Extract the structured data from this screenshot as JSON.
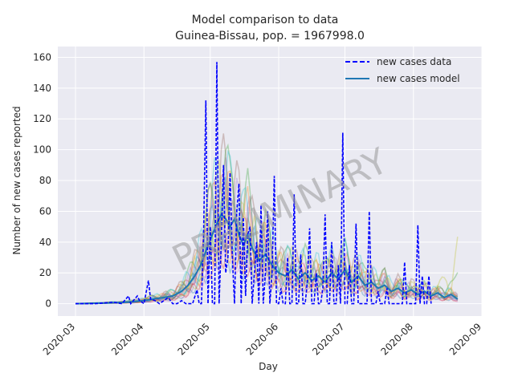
{
  "chart_data": {
    "type": "line",
    "title": "Model comparison to data",
    "subtitle": "Guinea-Bissau, pop. = 1967998.0",
    "xlabel": "Day",
    "ylabel": "Number of new cases reported",
    "watermark": "PRELIMINARY",
    "x_axis": {
      "kind": "date",
      "range": [
        "2020-02-22",
        "2020-09-01"
      ],
      "ticks": [
        "2020-03",
        "2020-04",
        "2020-05",
        "2020-06",
        "2020-07",
        "2020-08",
        "2020-09"
      ]
    },
    "y_axis": {
      "range": [
        -8,
        167
      ],
      "ticks": [
        0,
        20,
        40,
        60,
        80,
        100,
        120,
        140,
        160
      ]
    },
    "grid": true,
    "legend": {
      "placement": "top-right",
      "entries": [
        {
          "label": "new cases data",
          "style": "dashed",
          "color": "#0000ff"
        },
        {
          "label": "new cases model",
          "style": "solid",
          "color": "#1f77b4"
        }
      ]
    },
    "colors": {
      "background": "#eaeaf2",
      "grid": "#ffffff",
      "data": "#0000ff",
      "model": "#1f77b4",
      "ensemble": [
        "#1f77b4",
        "#ff7f0e",
        "#2ca02c",
        "#d62728",
        "#9467bd",
        "#8c564b",
        "#e377c2",
        "#bcbd22",
        "#17becf"
      ]
    },
    "series": [
      {
        "name": "new cases data",
        "points": [
          [
            "2020-03-01",
            0
          ],
          [
            "2020-03-10",
            0
          ],
          [
            "2020-03-18",
            1
          ],
          [
            "2020-03-22",
            0
          ],
          [
            "2020-03-25",
            5
          ],
          [
            "2020-03-26",
            0
          ],
          [
            "2020-03-29",
            5
          ],
          [
            "2020-03-30",
            2
          ],
          [
            "2020-04-01",
            0
          ],
          [
            "2020-04-03",
            15
          ],
          [
            "2020-04-04",
            3
          ],
          [
            "2020-04-06",
            2
          ],
          [
            "2020-04-08",
            0
          ],
          [
            "2020-04-12",
            4
          ],
          [
            "2020-04-14",
            0
          ],
          [
            "2020-04-16",
            0
          ],
          [
            "2020-04-18",
            2
          ],
          [
            "2020-04-20",
            0
          ],
          [
            "2020-04-23",
            0
          ],
          [
            "2020-04-25",
            9
          ],
          [
            "2020-04-26",
            0
          ],
          [
            "2020-04-27",
            0
          ],
          [
            "2020-04-28",
            45
          ],
          [
            "2020-04-29",
            132
          ],
          [
            "2020-04-30",
            0
          ],
          [
            "2020-05-01",
            50
          ],
          [
            "2020-05-02",
            0
          ],
          [
            "2020-05-03",
            0
          ],
          [
            "2020-05-04",
            157
          ],
          [
            "2020-05-05",
            0
          ],
          [
            "2020-05-06",
            40
          ],
          [
            "2020-05-07",
            90
          ],
          [
            "2020-05-08",
            20
          ],
          [
            "2020-05-09",
            30
          ],
          [
            "2020-05-10",
            85
          ],
          [
            "2020-05-11",
            30
          ],
          [
            "2020-05-12",
            0
          ],
          [
            "2020-05-13",
            60
          ],
          [
            "2020-05-14",
            78
          ],
          [
            "2020-05-15",
            0
          ],
          [
            "2020-05-16",
            56
          ],
          [
            "2020-05-17",
            5
          ],
          [
            "2020-05-18",
            45
          ],
          [
            "2020-05-19",
            50
          ],
          [
            "2020-05-20",
            0
          ],
          [
            "2020-05-21",
            20
          ],
          [
            "2020-05-22",
            40
          ],
          [
            "2020-05-23",
            0
          ],
          [
            "2020-05-24",
            64
          ],
          [
            "2020-05-25",
            0
          ],
          [
            "2020-05-26",
            20
          ],
          [
            "2020-05-27",
            60
          ],
          [
            "2020-05-28",
            0
          ],
          [
            "2020-05-29",
            20
          ],
          [
            "2020-05-30",
            83
          ],
          [
            "2020-05-31",
            0
          ],
          [
            "2020-06-01",
            0
          ],
          [
            "2020-06-02",
            10
          ],
          [
            "2020-06-03",
            0
          ],
          [
            "2020-06-04",
            0
          ],
          [
            "2020-06-05",
            30
          ],
          [
            "2020-06-06",
            0
          ],
          [
            "2020-06-07",
            0
          ],
          [
            "2020-06-08",
            71
          ],
          [
            "2020-06-09",
            0
          ],
          [
            "2020-06-10",
            0
          ],
          [
            "2020-06-11",
            32
          ],
          [
            "2020-06-12",
            0
          ],
          [
            "2020-06-13",
            0
          ],
          [
            "2020-06-14",
            15
          ],
          [
            "2020-06-15",
            49
          ],
          [
            "2020-06-16",
            0
          ],
          [
            "2020-06-17",
            0
          ],
          [
            "2020-06-18",
            20
          ],
          [
            "2020-06-19",
            0
          ],
          [
            "2020-06-20",
            0
          ],
          [
            "2020-06-21",
            10
          ],
          [
            "2020-06-22",
            58
          ],
          [
            "2020-06-23",
            0
          ],
          [
            "2020-06-24",
            0
          ],
          [
            "2020-06-25",
            40
          ],
          [
            "2020-06-26",
            0
          ],
          [
            "2020-06-27",
            0
          ],
          [
            "2020-06-28",
            25
          ],
          [
            "2020-06-29",
            0
          ],
          [
            "2020-06-30",
            111
          ],
          [
            "2020-07-01",
            0
          ],
          [
            "2020-07-02",
            0
          ],
          [
            "2020-07-03",
            25
          ],
          [
            "2020-07-04",
            0
          ],
          [
            "2020-07-05",
            0
          ],
          [
            "2020-07-06",
            52
          ],
          [
            "2020-07-07",
            0
          ],
          [
            "2020-07-08",
            0
          ],
          [
            "2020-07-09",
            0
          ],
          [
            "2020-07-10",
            0
          ],
          [
            "2020-07-11",
            0
          ],
          [
            "2020-07-12",
            60
          ],
          [
            "2020-07-13",
            0
          ],
          [
            "2020-07-14",
            0
          ],
          [
            "2020-07-15",
            0
          ],
          [
            "2020-07-16",
            8
          ],
          [
            "2020-07-17",
            0
          ],
          [
            "2020-07-19",
            0
          ],
          [
            "2020-07-20",
            10
          ],
          [
            "2020-07-21",
            0
          ],
          [
            "2020-07-27",
            0
          ],
          [
            "2020-07-28",
            27
          ],
          [
            "2020-07-29",
            0
          ],
          [
            "2020-08-02",
            0
          ],
          [
            "2020-08-03",
            51
          ],
          [
            "2020-08-04",
            0
          ],
          [
            "2020-08-05",
            18
          ],
          [
            "2020-08-06",
            0
          ],
          [
            "2020-08-07",
            0
          ],
          [
            "2020-08-08",
            18
          ],
          [
            "2020-08-09",
            0
          ]
        ]
      },
      {
        "name": "new cases model",
        "points": [
          [
            "2020-03-01",
            0
          ],
          [
            "2020-03-15",
            0.5
          ],
          [
            "2020-03-25",
            1
          ],
          [
            "2020-04-01",
            2
          ],
          [
            "2020-04-05",
            3
          ],
          [
            "2020-04-10",
            4
          ],
          [
            "2020-04-14",
            5
          ],
          [
            "2020-04-18",
            8
          ],
          [
            "2020-04-21",
            12
          ],
          [
            "2020-04-24",
            18
          ],
          [
            "2020-04-27",
            26
          ],
          [
            "2020-04-30",
            38
          ],
          [
            "2020-05-02",
            45
          ],
          [
            "2020-05-04",
            52
          ],
          [
            "2020-05-06",
            58
          ],
          [
            "2020-05-08",
            55
          ],
          [
            "2020-05-10",
            50
          ],
          [
            "2020-05-12",
            55
          ],
          [
            "2020-05-14",
            45
          ],
          [
            "2020-05-16",
            38
          ],
          [
            "2020-05-18",
            45
          ],
          [
            "2020-05-20",
            36
          ],
          [
            "2020-05-23",
            28
          ],
          [
            "2020-05-26",
            32
          ],
          [
            "2020-05-29",
            25
          ],
          [
            "2020-06-01",
            20
          ],
          [
            "2020-06-04",
            18
          ],
          [
            "2020-06-07",
            22
          ],
          [
            "2020-06-10",
            16
          ],
          [
            "2020-06-13",
            20
          ],
          [
            "2020-06-16",
            15
          ],
          [
            "2020-06-19",
            18
          ],
          [
            "2020-06-22",
            14
          ],
          [
            "2020-06-25",
            20
          ],
          [
            "2020-06-28",
            16
          ],
          [
            "2020-07-01",
            22
          ],
          [
            "2020-07-04",
            14
          ],
          [
            "2020-07-07",
            18
          ],
          [
            "2020-07-10",
            12
          ],
          [
            "2020-07-13",
            14
          ],
          [
            "2020-07-16",
            10
          ],
          [
            "2020-07-19",
            12
          ],
          [
            "2020-07-22",
            8
          ],
          [
            "2020-07-25",
            10
          ],
          [
            "2020-07-28",
            7
          ],
          [
            "2020-07-31",
            9
          ],
          [
            "2020-08-03",
            6
          ],
          [
            "2020-08-06",
            8
          ],
          [
            "2020-08-09",
            5
          ],
          [
            "2020-08-12",
            7
          ],
          [
            "2020-08-15",
            4
          ],
          [
            "2020-08-18",
            6
          ],
          [
            "2020-08-21",
            3
          ]
        ]
      }
    ]
  }
}
